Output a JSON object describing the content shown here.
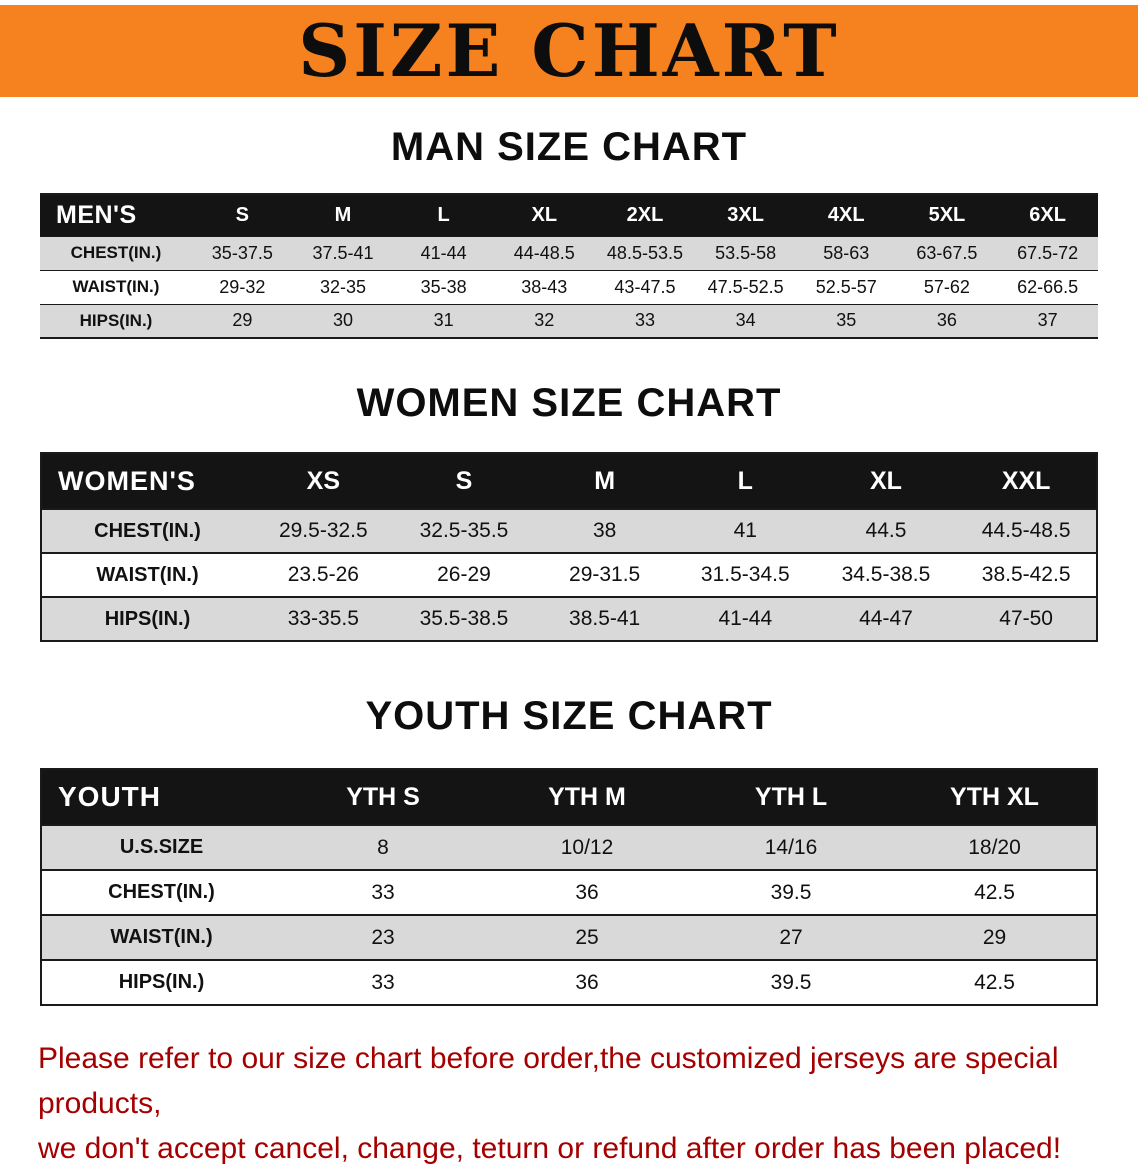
{
  "banner": {
    "title": "SIZE CHART"
  },
  "sections": [
    {
      "heading": "MAN SIZE CHART",
      "table": {
        "title": "MEN'S",
        "header": [
          "MEN'S",
          "S",
          "M",
          "L",
          "XL",
          "2XL",
          "3XL",
          "4XL",
          "5XL",
          "6XL"
        ],
        "rows": [
          [
            "CHEST(IN.)",
            "35-37.5",
            "37.5-41",
            "41-44",
            "44-48.5",
            "48.5-53.5",
            "53.5-58",
            "58-63",
            "63-67.5",
            "67.5-72"
          ],
          [
            "WAIST(IN.)",
            "29-32",
            "32-35",
            "35-38",
            "38-43",
            "43-47.5",
            "47.5-52.5",
            "52.5-57",
            "57-62",
            "62-66.5"
          ],
          [
            "HIPS(IN.)",
            "29",
            "30",
            "31",
            "32",
            "33",
            "34",
            "35",
            "36",
            "37"
          ]
        ]
      }
    },
    {
      "heading": "WOMEN SIZE CHART",
      "table": {
        "title": "WOMEN'S",
        "header": [
          "WOMEN'S",
          "XS",
          "S",
          "M",
          "L",
          "XL",
          "XXL"
        ],
        "rows": [
          [
            "CHEST(IN.)",
            "29.5-32.5",
            "32.5-35.5",
            "38",
            "41",
            "44.5",
            "44.5-48.5"
          ],
          [
            "WAIST(IN.)",
            "23.5-26",
            "26-29",
            "29-31.5",
            "31.5-34.5",
            "34.5-38.5",
            "38.5-42.5"
          ],
          [
            "HIPS(IN.)",
            "33-35.5",
            "35.5-38.5",
            "38.5-41",
            "41-44",
            "44-47",
            "47-50"
          ]
        ]
      }
    },
    {
      "heading": "YOUTH SIZE CHART",
      "table": {
        "title": "YOUTH",
        "header": [
          "YOUTH",
          "YTH S",
          "YTH M",
          "YTH L",
          "YTH XL"
        ],
        "rows": [
          [
            "U.S.SIZE",
            "8",
            "10/12",
            "14/16",
            "18/20"
          ],
          [
            "CHEST(IN.)",
            "33",
            "36",
            "39.5",
            "42.5"
          ],
          [
            "WAIST(IN.)",
            "23",
            "25",
            "27",
            "29"
          ],
          [
            "HIPS(IN.)",
            "33",
            "36",
            "39.5",
            "42.5"
          ]
        ]
      }
    }
  ],
  "disclaimer": {
    "line1": "Please refer to our size chart before order,the customized jerseys are special products,",
    "line2": "we don't accept cancel, change, teturn or refund after order has been placed!"
  },
  "colors": {
    "banner_orange": "#f6821f",
    "table_header_black": "#141414",
    "row_gray": "#d9d9d9",
    "disclaimer_red": "#a40000"
  }
}
